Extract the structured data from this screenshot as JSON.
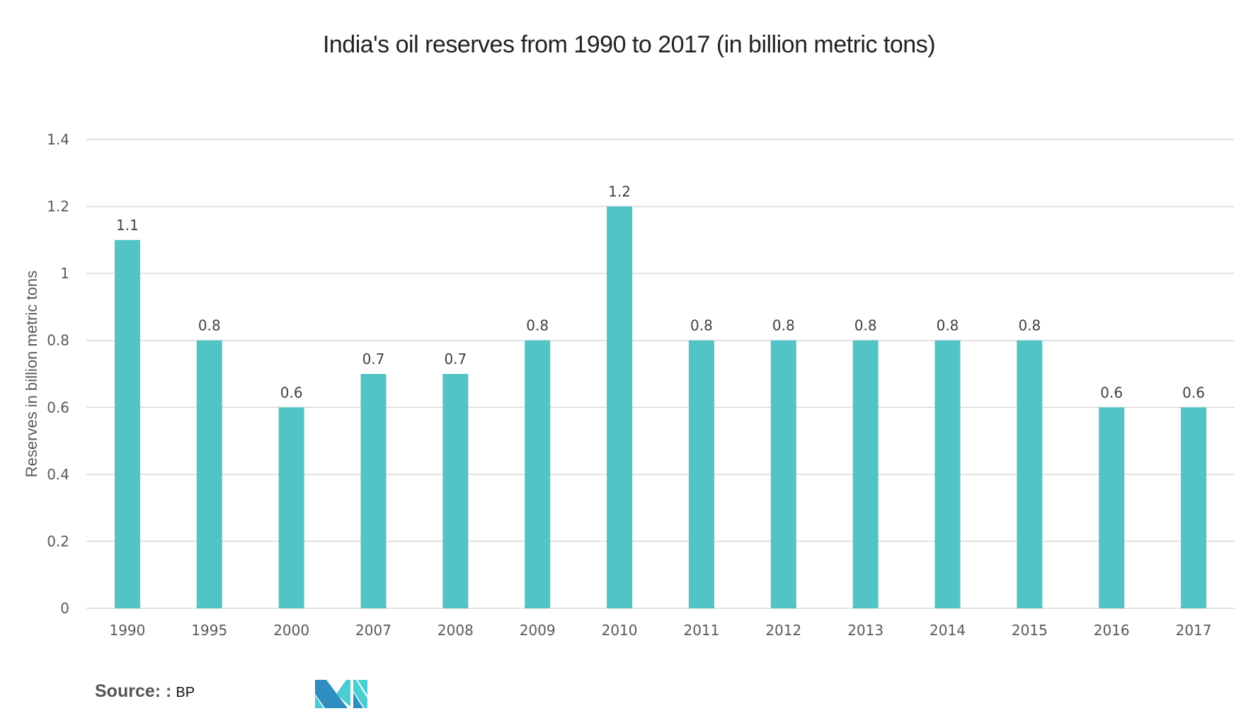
{
  "chart_data": {
    "type": "bar",
    "title": "India's oil reserves from 1990 to 2017 (in billion metric tons)",
    "xlabel": "",
    "ylabel": "Reserves in billion metric tons",
    "categories": [
      "1990",
      "1995",
      "2000",
      "2007",
      "2008",
      "2009",
      "2010",
      "2011",
      "2012",
      "2013",
      "2014",
      "2015",
      "2016",
      "2017"
    ],
    "values": [
      1.1,
      0.8,
      0.6,
      0.7,
      0.7,
      0.8,
      1.2,
      0.8,
      0.8,
      0.8,
      0.8,
      0.8,
      0.6,
      0.6
    ],
    "data_labels": [
      "1.1",
      "0.8",
      "0.6",
      "0.7",
      "0.7",
      "0.8",
      "1.2",
      "0.8",
      "0.8",
      "0.8",
      "0.8",
      "0.8",
      "0.6",
      "0.6"
    ],
    "ylim": [
      0,
      1.4
    ],
    "yticks": [
      0,
      0.2,
      0.4,
      0.6,
      0.8,
      1,
      1.2,
      1.4
    ],
    "ytick_labels": [
      "0",
      "0.2",
      "0.4",
      "0.6",
      "0.8",
      "1",
      "1.2",
      "1.4"
    ],
    "grid": true,
    "bar_color": "#52C3C6"
  },
  "footer": {
    "source_label": "Source: :",
    "source_value": "BP"
  },
  "colors": {
    "logo_dark": "#2E8FBF",
    "logo_light": "#4ACDD3"
  }
}
